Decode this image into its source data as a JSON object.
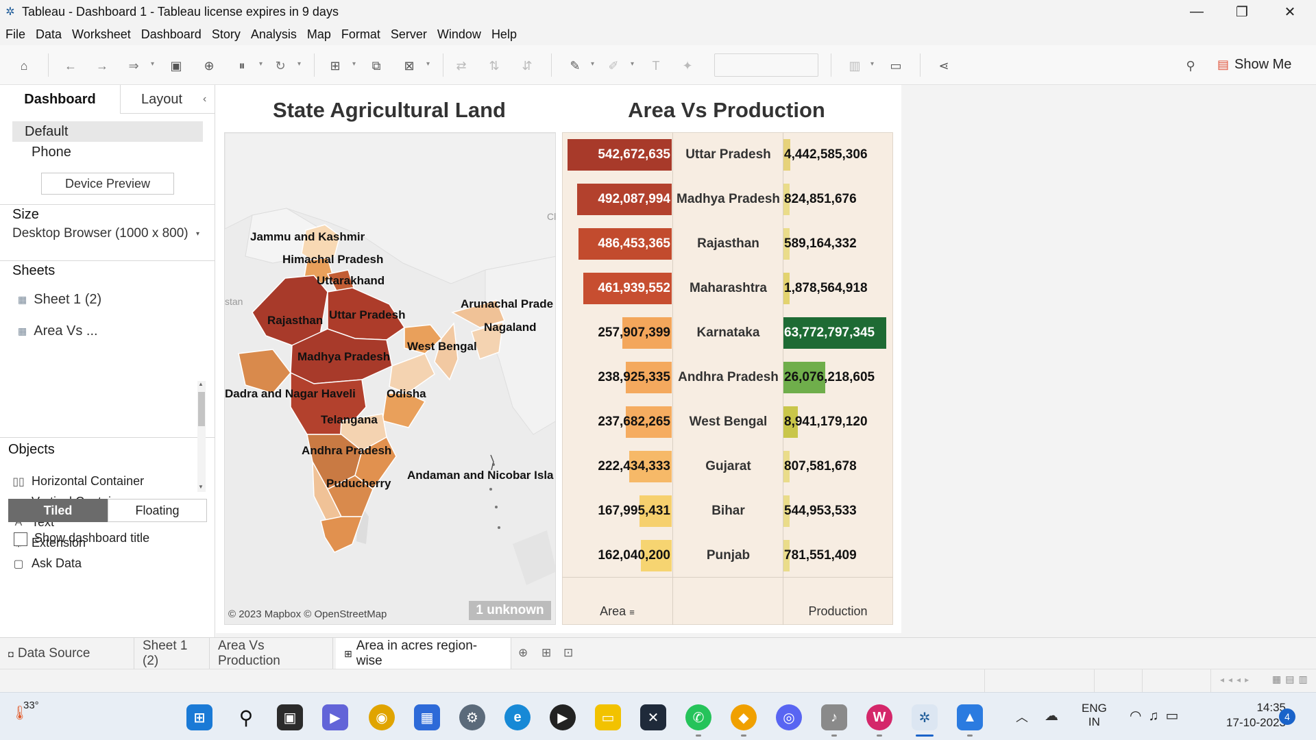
{
  "window": {
    "title": "Tableau - Dashboard 1 - Tableau license expires in 9 days"
  },
  "menu": [
    "File",
    "Data",
    "Worksheet",
    "Dashboard",
    "Story",
    "Analysis",
    "Map",
    "Format",
    "Server",
    "Window",
    "Help"
  ],
  "toolbar": {
    "show_me_label": "Show Me"
  },
  "left_panel": {
    "tabs": [
      "Dashboard",
      "Layout"
    ],
    "devices": [
      "Default",
      "Phone"
    ],
    "device_preview_label": "Device Preview",
    "size_title": "Size",
    "size_value": "Desktop Browser (1000 x 800)",
    "sheets_title": "Sheets",
    "sheets": [
      "Sheet 1 (2)",
      "Area Vs ..."
    ],
    "objects_title": "Objects",
    "objects": [
      "Horizontal Container",
      "Vertical Container",
      "Text",
      "Extension",
      "Ask Data"
    ],
    "tiled_label": "Tiled",
    "floating_label": "Floating",
    "show_title_label": "Show dashboard title"
  },
  "map_sheet": {
    "title": "State Agricultural Land",
    "labels": [
      "Jammu and Kashmir",
      "Himachal Pradesh",
      "Uttarakhand",
      "Rajasthan",
      "Uttar Pradesh",
      "Arunachal Prade",
      "Nagaland",
      "West Bengal",
      "Madhya Pradesh",
      "Dadra and Nagar Haveli",
      "Odisha",
      "Telangana",
      "Andhra Pradesh",
      "Andaman and Nicobar Isla",
      "Puducherry"
    ],
    "faint_labels": [
      "stan",
      "Cl"
    ],
    "attribution": "© 2023 Mapbox © OpenStreetMap",
    "unknown_badge": "1 unknown"
  },
  "chart_data": {
    "type": "bar",
    "title": "Area Vs Production",
    "categories": [
      "Uttar Pradesh",
      "Madhya Pradesh",
      "Rajasthan",
      "Maharashtra",
      "Karnataka",
      "Andhra Pradesh",
      "West Bengal",
      "Gujarat",
      "Bihar",
      "Punjab"
    ],
    "series": [
      {
        "name": "Area",
        "values": [
          542672635,
          492087994,
          486453365,
          461939552,
          257907399,
          238925335,
          237682265,
          222434333,
          167995431,
          162040200
        ],
        "labels": [
          "542,672,635",
          "492,087,994",
          "486,453,365",
          "461,939,552",
          "257,907,399",
          "238,925,335",
          "237,682,265",
          "222,434,333",
          "167,995,431",
          "162,040,200"
        ],
        "colors": [
          "#a83a2a",
          "#b3412d",
          "#c24b2e",
          "#c74e30",
          "#f3a65b",
          "#f4a95e",
          "#f5ac60",
          "#f6b968",
          "#f6d06e",
          "#f6d471"
        ]
      },
      {
        "name": "Production",
        "values": [
          4442585306,
          824851676,
          589164332,
          1878564918,
          63772797345,
          26076218605,
          8941179120,
          807581678,
          544953533,
          781551409
        ],
        "labels": [
          "4,442,585,306",
          "824,851,676",
          "589,164,332",
          "1,878,564,918",
          "63,772,797,345",
          "26,076,218,605",
          "8,941,179,120",
          "807,581,678",
          "544,953,533",
          "781,551,409"
        ],
        "colors": [
          "#e6d27a",
          "#eadc8a",
          "#eadc8a",
          "#e3d36f",
          "#1e6b34",
          "#6fae4b",
          "#c9c64a",
          "#eadc8a",
          "#eadc8a",
          "#eadc8a"
        ]
      }
    ],
    "column_headers": [
      "Area",
      "Production"
    ],
    "sort_icon": "sort-descending-icon"
  },
  "sheet_tabs": [
    "Data Source",
    "Sheet 1 (2)",
    "Area Vs Production",
    "Area in acres region-wise"
  ],
  "taskbar": {
    "weather_temp": "33°",
    "lang_line1": "ENG",
    "lang_line2": "IN",
    "time": "14:35",
    "date": "17-10-2023",
    "notifications": "4"
  }
}
